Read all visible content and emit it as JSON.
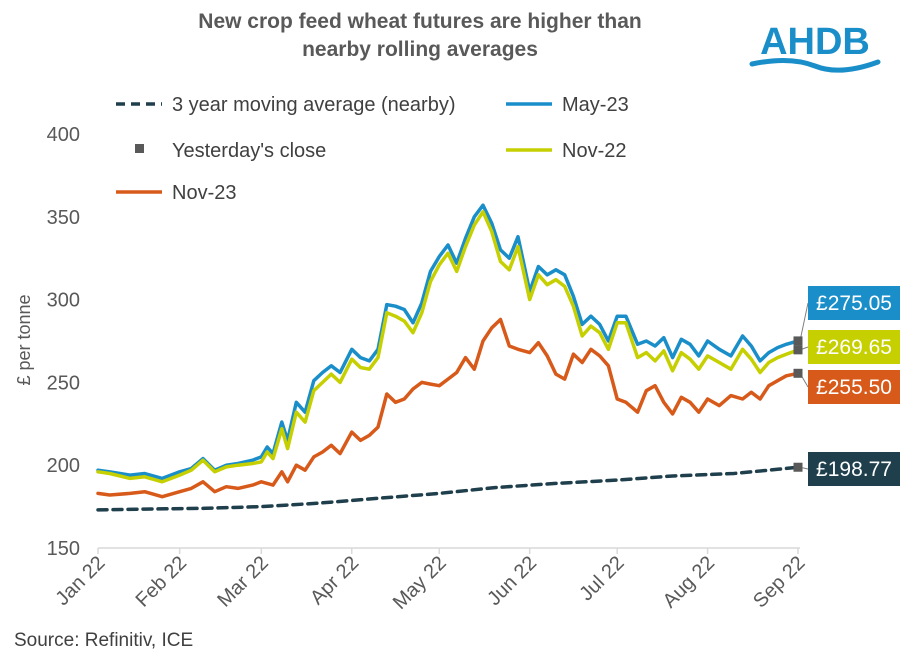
{
  "logo": {
    "text": "AHDB",
    "color": "#1a8ec9"
  },
  "source": "Source: Refinitiv, ICE",
  "colors": {
    "moving_avg": "#1f3f4d",
    "may23": "#1a8ec9",
    "nov22": "#c6cf00",
    "nov23": "#d75a1a",
    "close": "#595959",
    "axis": "#d9d9d9"
  },
  "chart_data": {
    "type": "line",
    "title": "New crop feed wheat futures are higher than nearby rolling averages",
    "title_lines": [
      "New crop feed wheat futures are higher than",
      "nearby rolling averages"
    ],
    "xlabel": "",
    "ylabel": "£ per tonne",
    "ylim": [
      150,
      400
    ],
    "yticks": [
      150,
      200,
      250,
      300,
      350,
      400
    ],
    "xlim": [
      "2022-01-04",
      "2022-09-01"
    ],
    "xticks": [
      {
        "label": "Jan 22",
        "date": "2022-01-04"
      },
      {
        "label": "Feb 22",
        "date": "2022-02-01"
      },
      {
        "label": "Mar 22",
        "date": "2022-03-01"
      },
      {
        "label": "Apr 22",
        "date": "2022-04-01"
      },
      {
        "label": "May 22",
        "date": "2022-05-01"
      },
      {
        "label": "Jun 22",
        "date": "2022-06-01"
      },
      {
        "label": "Jul 22",
        "date": "2022-07-01"
      },
      {
        "label": "Aug 22",
        "date": "2022-08-01"
      },
      {
        "label": "Sep 22",
        "date": "2022-09-01"
      }
    ],
    "grid": false,
    "legend": {
      "placement": "top",
      "entries": [
        {
          "label": "3 year moving average (nearby)",
          "series": "moving_avg"
        },
        {
          "label": "May-23",
          "series": "may23"
        },
        {
          "label": "Yesterday's close",
          "series": "close"
        },
        {
          "label": "Nov-22",
          "series": "nov22"
        },
        {
          "label": "Nov-23",
          "series": "nov23"
        }
      ]
    },
    "series": [
      {
        "key": "moving_avg",
        "name": "3 year moving average (nearby)",
        "style": "dashed",
        "x": [
          "2022-01-04",
          "2022-01-20",
          "2022-02-10",
          "2022-03-01",
          "2022-03-20",
          "2022-04-10",
          "2022-05-01",
          "2022-05-20",
          "2022-06-10",
          "2022-07-01",
          "2022-07-20",
          "2022-08-10",
          "2022-08-25",
          "2022-09-01"
        ],
        "y": [
          173,
          173.5,
          174,
          175,
          177,
          180,
          183,
          186.5,
          189,
          191,
          193.5,
          195,
          197.5,
          198.77
        ]
      },
      {
        "key": "may23",
        "name": "May-23",
        "style": "solid",
        "x": [
          "2022-01-04",
          "2022-01-08",
          "2022-01-15",
          "2022-01-20",
          "2022-01-26",
          "2022-02-01",
          "2022-02-05",
          "2022-02-09",
          "2022-02-13",
          "2022-02-17",
          "2022-02-21",
          "2022-02-26",
          "2022-03-01",
          "2022-03-03",
          "2022-03-05",
          "2022-03-08",
          "2022-03-10",
          "2022-03-13",
          "2022-03-16",
          "2022-03-19",
          "2022-03-22",
          "2022-03-25",
          "2022-03-28",
          "2022-04-01",
          "2022-04-04",
          "2022-04-07",
          "2022-04-10",
          "2022-04-13",
          "2022-04-16",
          "2022-04-19",
          "2022-04-22",
          "2022-04-25",
          "2022-04-28",
          "2022-05-01",
          "2022-05-04",
          "2022-05-07",
          "2022-05-10",
          "2022-05-13",
          "2022-05-16",
          "2022-05-19",
          "2022-05-22",
          "2022-05-25",
          "2022-05-28",
          "2022-06-01",
          "2022-06-04",
          "2022-06-07",
          "2022-06-10",
          "2022-06-13",
          "2022-06-16",
          "2022-06-19",
          "2022-06-22",
          "2022-06-25",
          "2022-06-28",
          "2022-07-01",
          "2022-07-04",
          "2022-07-08",
          "2022-07-11",
          "2022-07-14",
          "2022-07-17",
          "2022-07-20",
          "2022-07-23",
          "2022-07-26",
          "2022-07-29",
          "2022-08-01",
          "2022-08-05",
          "2022-08-09",
          "2022-08-13",
          "2022-08-16",
          "2022-08-19",
          "2022-08-22",
          "2022-08-25",
          "2022-08-28",
          "2022-09-01"
        ],
        "y": [
          197,
          196,
          194,
          195,
          192,
          196,
          198,
          204,
          197,
          200,
          201,
          203,
          205,
          211,
          207,
          226,
          215,
          238,
          232,
          251,
          256,
          260,
          256,
          270,
          265,
          263,
          270,
          297,
          296,
          294,
          286,
          298,
          317,
          326,
          333,
          322,
          337,
          350,
          357,
          346,
          330,
          325,
          338,
          305,
          320,
          315,
          318,
          315,
          302,
          285,
          290,
          285,
          275,
          290,
          290,
          273,
          275,
          272,
          277,
          265,
          276,
          273,
          266,
          275,
          270,
          266,
          278,
          272,
          263,
          268,
          271,
          273,
          275.05
        ]
      },
      {
        "key": "nov22",
        "name": "Nov-22",
        "style": "solid",
        "x": [
          "2022-01-04",
          "2022-01-08",
          "2022-01-15",
          "2022-01-20",
          "2022-01-26",
          "2022-02-01",
          "2022-02-05",
          "2022-02-09",
          "2022-02-13",
          "2022-02-17",
          "2022-02-21",
          "2022-02-26",
          "2022-03-01",
          "2022-03-03",
          "2022-03-05",
          "2022-03-08",
          "2022-03-10",
          "2022-03-13",
          "2022-03-16",
          "2022-03-19",
          "2022-03-22",
          "2022-03-25",
          "2022-03-28",
          "2022-04-01",
          "2022-04-04",
          "2022-04-07",
          "2022-04-10",
          "2022-04-13",
          "2022-04-16",
          "2022-04-19",
          "2022-04-22",
          "2022-04-25",
          "2022-04-28",
          "2022-05-01",
          "2022-05-04",
          "2022-05-07",
          "2022-05-10",
          "2022-05-13",
          "2022-05-16",
          "2022-05-19",
          "2022-05-22",
          "2022-05-25",
          "2022-05-28",
          "2022-06-01",
          "2022-06-04",
          "2022-06-07",
          "2022-06-10",
          "2022-06-13",
          "2022-06-16",
          "2022-06-19",
          "2022-06-22",
          "2022-06-25",
          "2022-06-28",
          "2022-07-01",
          "2022-07-04",
          "2022-07-08",
          "2022-07-11",
          "2022-07-14",
          "2022-07-17",
          "2022-07-20",
          "2022-07-23",
          "2022-07-26",
          "2022-07-29",
          "2022-08-01",
          "2022-08-05",
          "2022-08-09",
          "2022-08-13",
          "2022-08-16",
          "2022-08-19",
          "2022-08-22",
          "2022-08-25",
          "2022-08-28",
          "2022-09-01"
        ],
        "y": [
          196,
          195,
          192,
          193,
          190,
          194,
          197,
          203,
          196,
          199,
          200,
          201,
          202,
          208,
          204,
          222,
          210,
          232,
          226,
          245,
          250,
          255,
          250,
          264,
          259,
          258,
          265,
          292,
          290,
          287,
          280,
          292,
          311,
          321,
          328,
          317,
          332,
          345,
          353,
          341,
          323,
          318,
          332,
          300,
          315,
          309,
          312,
          308,
          296,
          278,
          284,
          280,
          270,
          286,
          286,
          265,
          268,
          263,
          269,
          257,
          268,
          264,
          258,
          266,
          262,
          258,
          270,
          264,
          256,
          262,
          265,
          267,
          269.65
        ]
      },
      {
        "key": "nov23",
        "name": "Nov-23",
        "style": "solid",
        "x": [
          "2022-01-04",
          "2022-01-08",
          "2022-01-15",
          "2022-01-20",
          "2022-01-26",
          "2022-02-01",
          "2022-02-05",
          "2022-02-09",
          "2022-02-13",
          "2022-02-17",
          "2022-02-21",
          "2022-02-26",
          "2022-03-01",
          "2022-03-03",
          "2022-03-05",
          "2022-03-08",
          "2022-03-10",
          "2022-03-13",
          "2022-03-16",
          "2022-03-19",
          "2022-03-22",
          "2022-03-25",
          "2022-03-28",
          "2022-04-01",
          "2022-04-04",
          "2022-04-07",
          "2022-04-10",
          "2022-04-13",
          "2022-04-16",
          "2022-04-19",
          "2022-04-22",
          "2022-04-25",
          "2022-04-28",
          "2022-05-01",
          "2022-05-04",
          "2022-05-07",
          "2022-05-10",
          "2022-05-13",
          "2022-05-16",
          "2022-05-19",
          "2022-05-22",
          "2022-05-25",
          "2022-05-28",
          "2022-06-01",
          "2022-06-04",
          "2022-06-07",
          "2022-06-10",
          "2022-06-13",
          "2022-06-16",
          "2022-06-19",
          "2022-06-22",
          "2022-06-25",
          "2022-06-28",
          "2022-07-01",
          "2022-07-04",
          "2022-07-08",
          "2022-07-11",
          "2022-07-14",
          "2022-07-17",
          "2022-07-20",
          "2022-07-23",
          "2022-07-26",
          "2022-07-29",
          "2022-08-01",
          "2022-08-05",
          "2022-08-09",
          "2022-08-13",
          "2022-08-16",
          "2022-08-19",
          "2022-08-22",
          "2022-08-25",
          "2022-08-28",
          "2022-09-01"
        ],
        "y": [
          183,
          182,
          183,
          184,
          181,
          184,
          186,
          190,
          184,
          187,
          186,
          188,
          190,
          189,
          188,
          196,
          190,
          200,
          197,
          205,
          208,
          212,
          207,
          220,
          215,
          218,
          223,
          243,
          238,
          240,
          246,
          250,
          249,
          248,
          252,
          256,
          265,
          258,
          275,
          283,
          288,
          272,
          270,
          268,
          274,
          266,
          255,
          252,
          267,
          262,
          270,
          266,
          260,
          240,
          238,
          232,
          245,
          248,
          238,
          231,
          241,
          238,
          232,
          240,
          236,
          242,
          240,
          244,
          240,
          248,
          251,
          254,
          255.5
        ]
      }
    ],
    "markers": {
      "name": "Yesterday's close",
      "x": "2022-09-01",
      "values": [
        275.05,
        269.65,
        255.5,
        198.77
      ]
    },
    "callouts": [
      {
        "text": "£275.05",
        "value": 275.05,
        "color": "#1a8ec9"
      },
      {
        "text": "£269.65",
        "value": 269.65,
        "color": "#c6cf00"
      },
      {
        "text": "£255.50",
        "value": 255.5,
        "color": "#d75a1a"
      },
      {
        "text": "£198.77",
        "value": 198.77,
        "color": "#1f3f4d"
      }
    ]
  }
}
